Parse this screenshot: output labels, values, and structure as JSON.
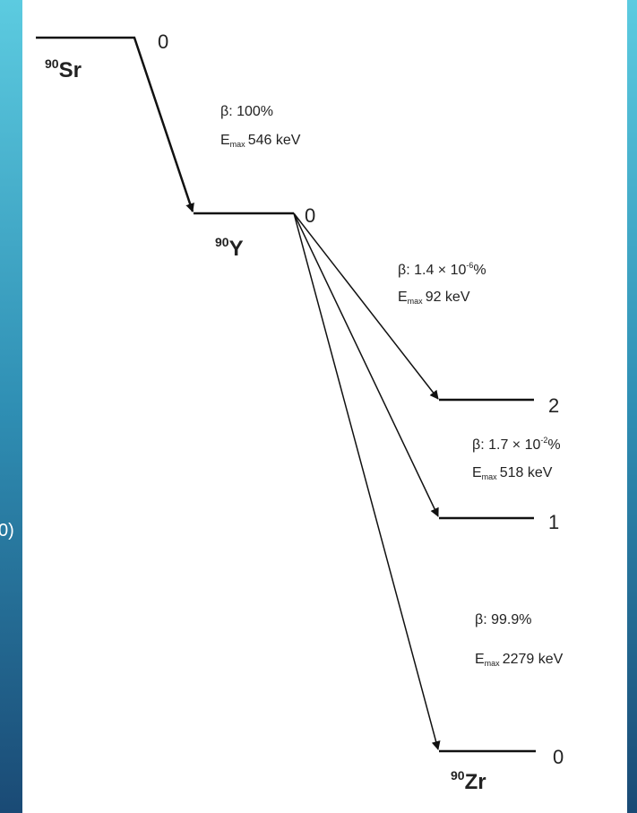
{
  "side_text": "0)",
  "levels": [
    {
      "mass": "90",
      "symbol": "Sr",
      "energy_label": "0"
    },
    {
      "mass": "90",
      "symbol": "Y",
      "energy_label": "0"
    },
    {
      "energy_label": "2"
    },
    {
      "energy_label": "1"
    },
    {
      "mass": "90",
      "symbol": "Zr",
      "energy_label": "0"
    }
  ],
  "transitions": [
    {
      "branch": "β: 100%",
      "e_prefix": "E",
      "e_sub": "max",
      "e_value": "546 keV"
    },
    {
      "branch": "β: 1.4 × 10",
      "branch_exp": "-6",
      "branch_suffix": "%",
      "e_prefix": "E",
      "e_sub": "max",
      "e_value": "92 keV"
    },
    {
      "branch": "β: 1.7 × 10",
      "branch_exp": "-2",
      "branch_suffix": "%",
      "e_prefix": "E",
      "e_sub": "max",
      "e_value": "518 keV"
    },
    {
      "branch": "β: 99.9%",
      "e_prefix": "E",
      "e_sub": "max",
      "e_value": "2279 keV"
    }
  ]
}
